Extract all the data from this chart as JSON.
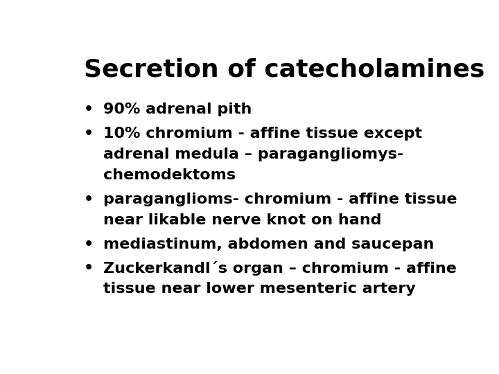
{
  "title": "Secretion of catecholamines",
  "title_fontsize": 26,
  "title_fontweight": "bold",
  "background_color": "#ffffff",
  "text_color": "#000000",
  "bullet_items": [
    [
      "90% adrenal pith"
    ],
    [
      "10% chromium - affine tissue except",
      "adrenal medula – paragangliomys-",
      "chemodektoms"
    ],
    [
      "paraganglioms- chromium - affine tissue",
      "near likable nerve knot on hand"
    ],
    [
      "mediastinum, abdomen and saucepan"
    ],
    [
      "Zuckerkandl´s organ – chromium - affine",
      "tissue near lower mesenteric artery"
    ]
  ],
  "bullet_fontsize": 16,
  "font_family": "DejaVu Sans"
}
